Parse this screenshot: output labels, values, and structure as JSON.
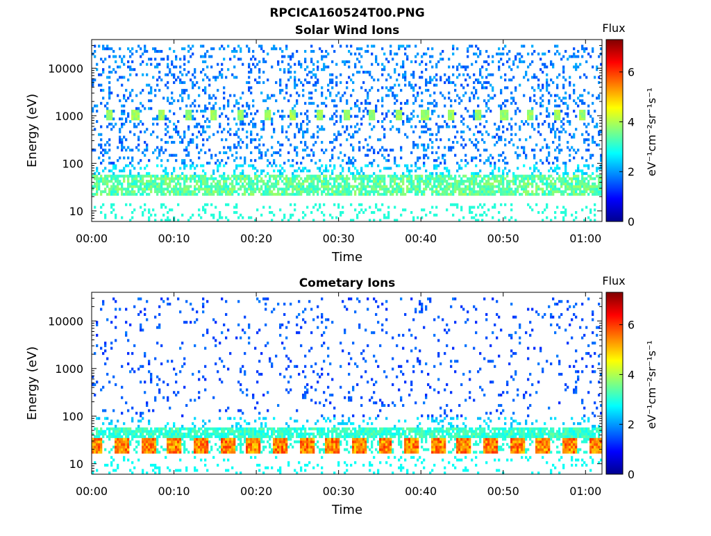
{
  "figure": {
    "main_title": "RPCICA160524T00.PNG"
  },
  "colormap": [
    "#00008f",
    "#0000ff",
    "#0080ff",
    "#00ffff",
    "#80ff80",
    "#ffff00",
    "#ff8000",
    "#ff0000",
    "#800000"
  ],
  "chart_data": [
    {
      "type": "heatmap",
      "title": "Solar Wind Ions",
      "xlabel": "Time",
      "ylabel": "Energy (eV)",
      "x_ticks": [
        "00:00",
        "00:10",
        "00:20",
        "00:30",
        "00:40",
        "00:50",
        "01:00"
      ],
      "x_range_minutes": [
        0,
        62
      ],
      "y_scale": "log",
      "y_ticks": [
        "10",
        "100",
        "1000",
        "10000"
      ],
      "y_range": [
        6,
        40000
      ],
      "colorbar": {
        "title": "Flux",
        "label": "eV⁻¹cm⁻²sr⁻¹s⁻¹",
        "ticks": [
          "0",
          "2",
          "4",
          "6"
        ],
        "range": [
          0,
          7.3
        ]
      },
      "features": [
        {
          "name": "background scattered counts",
          "energy_range_eV": [
            100,
            30000
          ],
          "flux": 1.4
        },
        {
          "name": "periodic solar wind proton peaks",
          "energy_eV": 1000,
          "flux": 3.6,
          "period_min": 3.2
        },
        {
          "name": "low energy band",
          "energy_range_eV": [
            20,
            60
          ],
          "flux": 3.3
        },
        {
          "name": "lowest energy streaks",
          "energy_range_eV": [
            6,
            15
          ],
          "flux": 3.0
        }
      ]
    },
    {
      "type": "heatmap",
      "title": "Cometary Ions",
      "xlabel": "Time",
      "ylabel": "Energy (eV)",
      "x_ticks": [
        "00:00",
        "00:10",
        "00:20",
        "00:30",
        "00:40",
        "00:50",
        "01:00"
      ],
      "x_range_minutes": [
        0,
        62
      ],
      "y_scale": "log",
      "y_ticks": [
        "10",
        "100",
        "1000",
        "10000"
      ],
      "y_range": [
        6,
        40000
      ],
      "colorbar": {
        "title": "Flux",
        "label": "eV⁻¹cm⁻²sr⁻¹s⁻¹",
        "ticks": [
          "0",
          "2",
          "4",
          "6"
        ],
        "range": [
          0,
          7.3
        ]
      },
      "features": [
        {
          "name": "sparse high energy counts",
          "energy_range_eV": [
            100,
            30000
          ],
          "flux": 1.2
        },
        {
          "name": "low energy cometary band",
          "energy_range_eV": [
            35,
            60
          ],
          "flux": 3.0
        },
        {
          "name": "periodic cometary ion peaks",
          "energy_eV": 25,
          "flux": 5.8,
          "period_min": 3.2
        },
        {
          "name": "lowest energy streaks",
          "energy_range_eV": [
            6,
            15
          ],
          "flux": 2.8
        }
      ]
    }
  ]
}
